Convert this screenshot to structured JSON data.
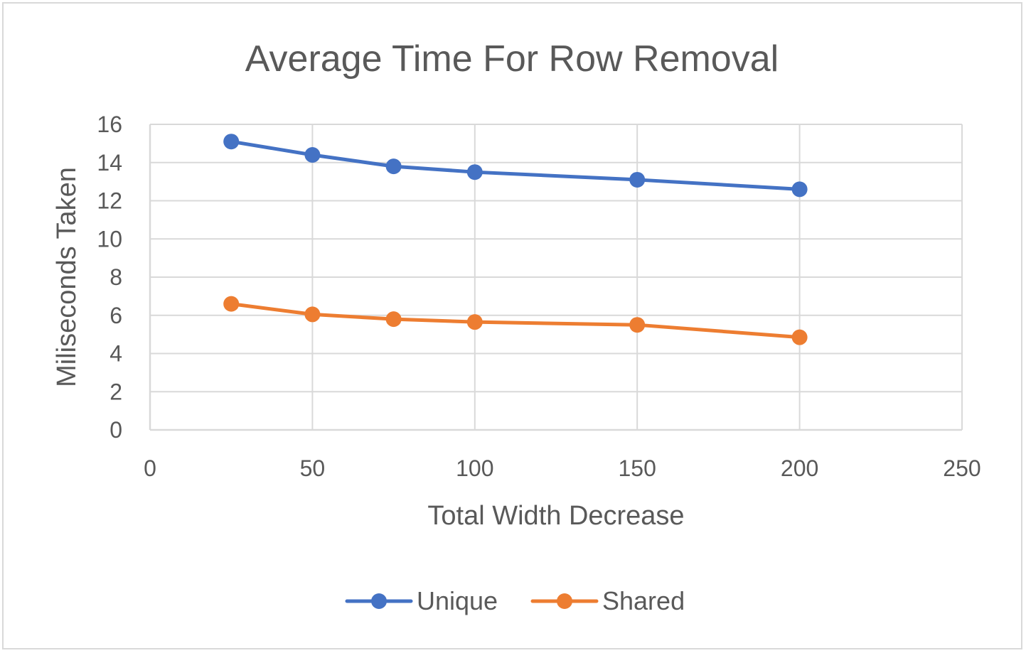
{
  "chart_data": {
    "type": "line",
    "title": "Average Time For Row Removal",
    "xlabel": "Total Width Decrease",
    "ylabel": "Miliseconds Taken",
    "xlim": [
      0,
      250
    ],
    "ylim": [
      0,
      16
    ],
    "x_ticks": [
      0,
      50,
      100,
      150,
      200,
      250
    ],
    "y_ticks": [
      0,
      2,
      4,
      6,
      8,
      10,
      12,
      14,
      16
    ],
    "grid": true,
    "legend_position": "bottom",
    "x": [
      25,
      50,
      75,
      100,
      150,
      200
    ],
    "series": [
      {
        "name": "Unique",
        "color": "#4472C4",
        "values": [
          15.1,
          14.4,
          13.8,
          13.5,
          13.1,
          12.6
        ]
      },
      {
        "name": "Shared",
        "color": "#ED7D31",
        "values": [
          6.6,
          6.05,
          5.8,
          5.65,
          5.5,
          4.85
        ]
      }
    ]
  }
}
